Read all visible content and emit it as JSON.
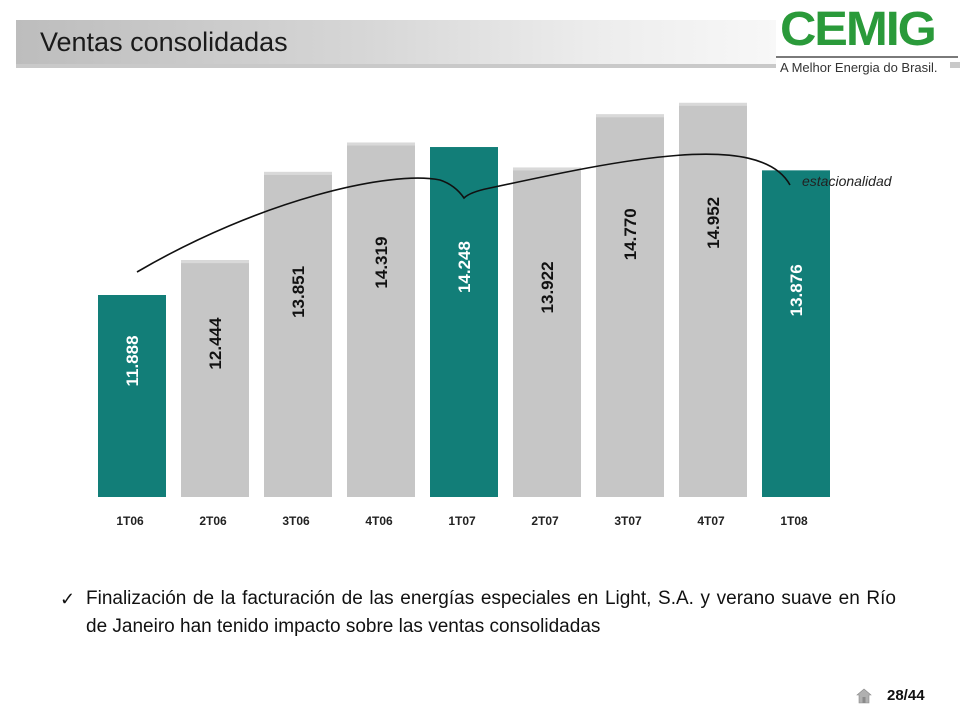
{
  "slide": {
    "title": "Ventas consolidadas",
    "logo_text": "CEMIG",
    "logo_tagline": "A Melhor Energia do Brasil.",
    "bullet_text": "Finalización de la facturación de las energías especiales en Light, S.A. y verano suave en Río de Janeiro han tenido impacto sobre las ventas consolidadas",
    "check_mark": "✓",
    "page_number": "28/44"
  },
  "colors": {
    "highlight_bar": "#127e78",
    "regular_bar": "#c6c6c6",
    "logo_green": "#2a9a3a"
  },
  "chart_data": {
    "type": "bar",
    "categories": [
      "1T06",
      "2T06",
      "3T06",
      "4T06",
      "1T07",
      "2T07",
      "3T07",
      "4T07",
      "1T08"
    ],
    "values": [
      11888,
      12444,
      13851,
      14319,
      14248,
      13922,
      14770,
      14952,
      13876
    ],
    "value_labels": [
      "11.888",
      "12.444",
      "13.851",
      "14.319",
      "14.248",
      "13.922",
      "14.770",
      "14.952",
      "13.876"
    ],
    "highlighted": [
      true,
      false,
      false,
      false,
      true,
      false,
      false,
      false,
      true
    ],
    "annotation": "estacionalidad",
    "title": "",
    "xlabel": "",
    "ylabel": "",
    "grid": false,
    "legend": "none"
  }
}
